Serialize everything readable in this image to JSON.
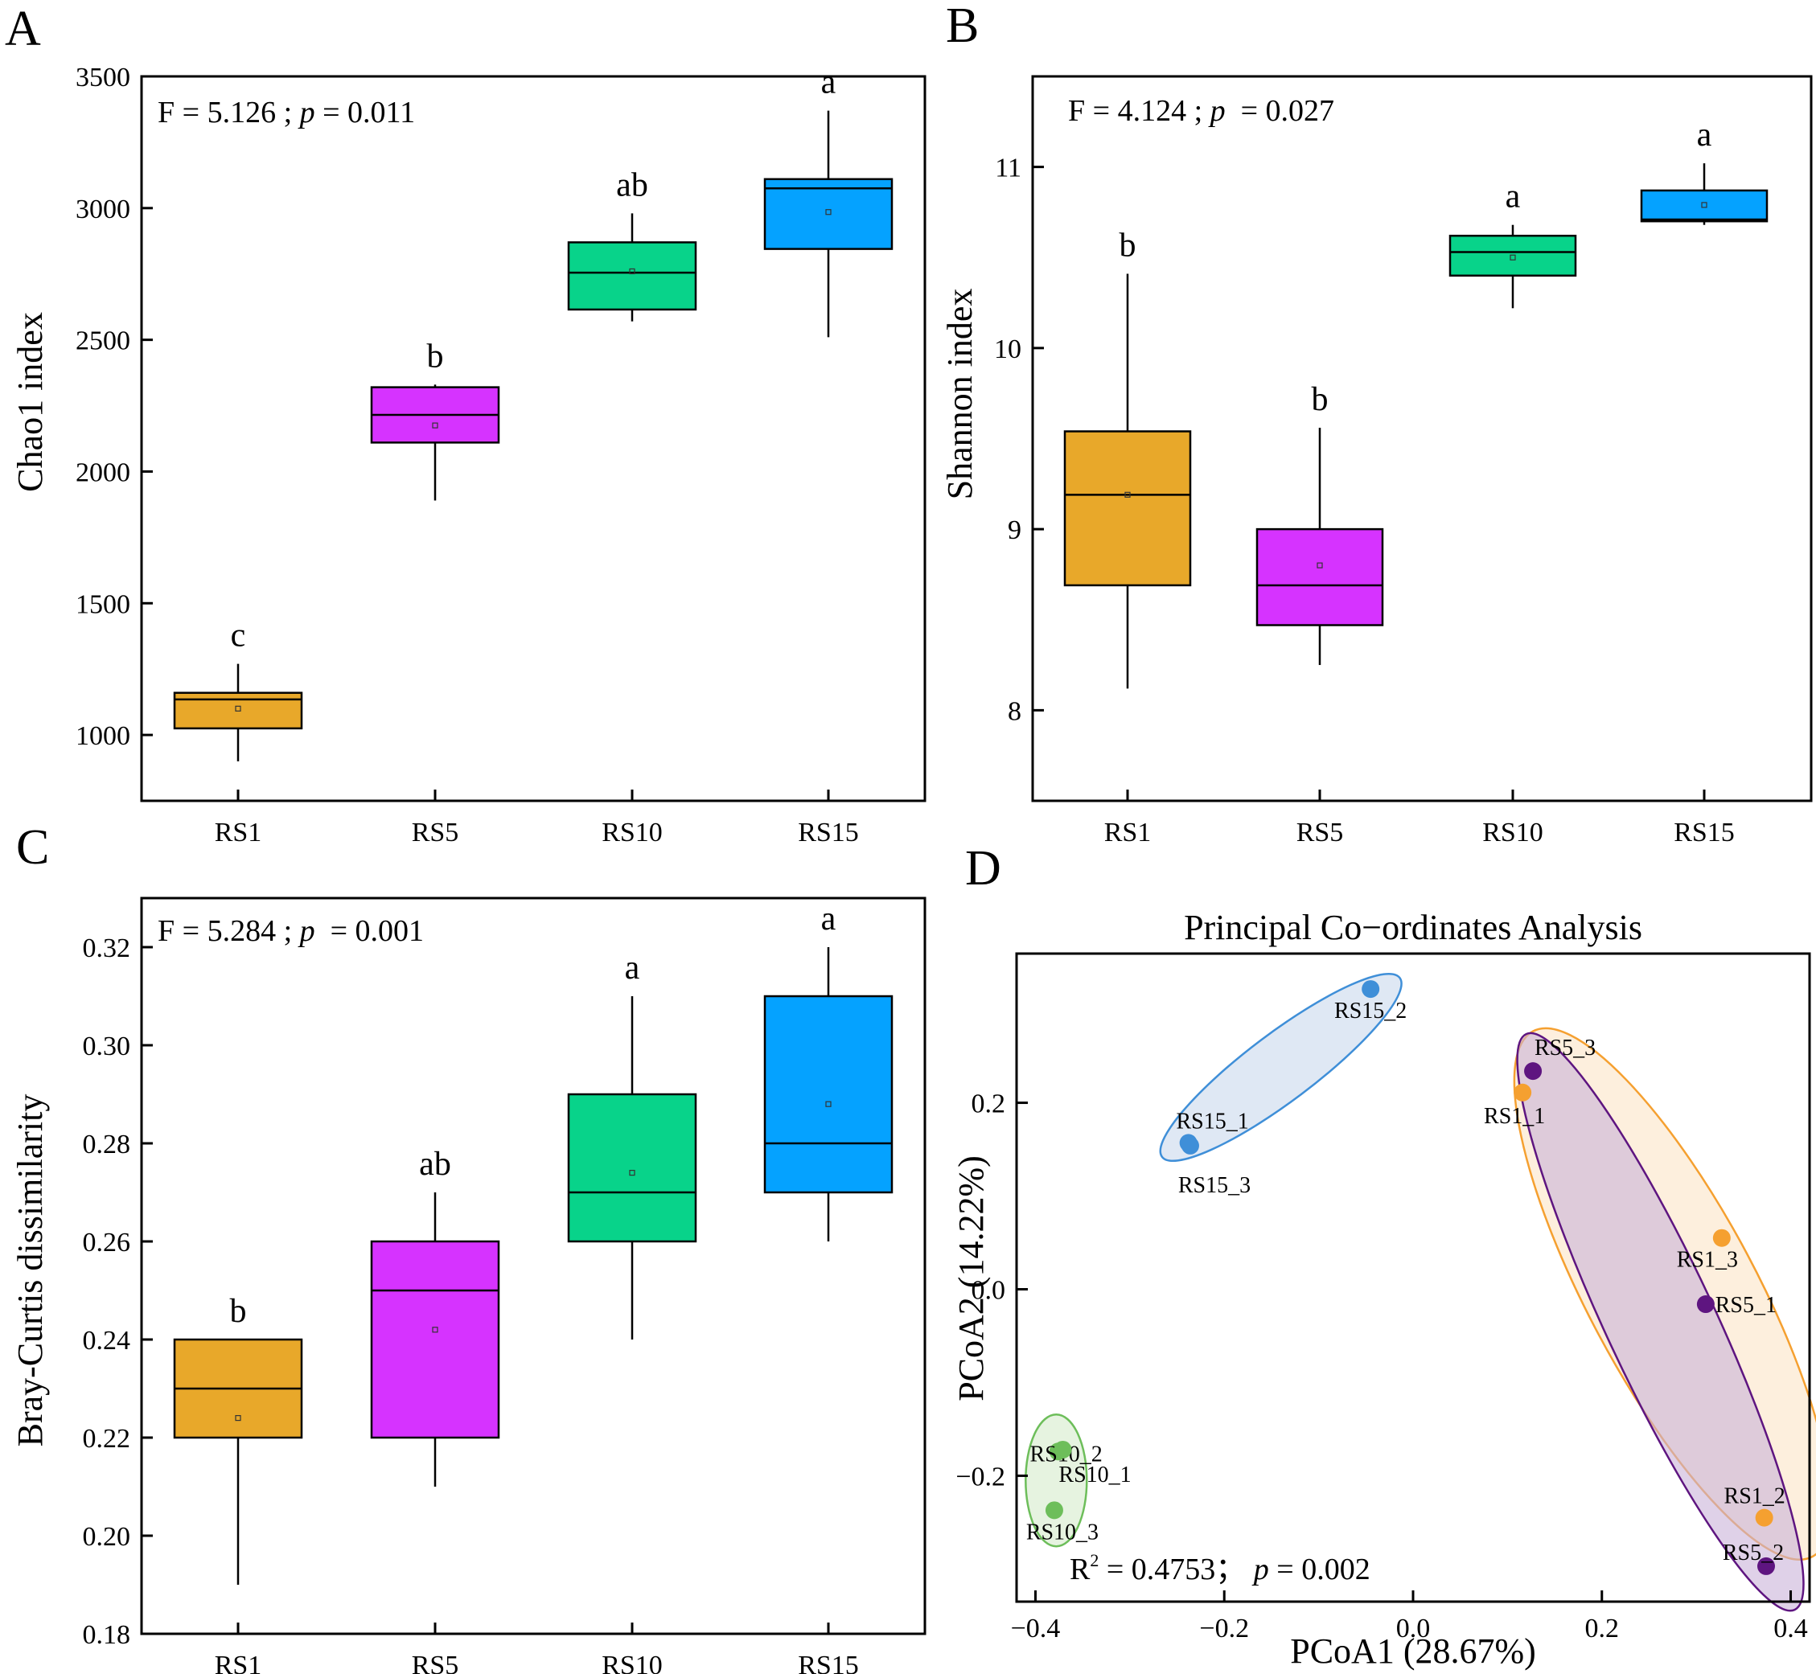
{
  "chart_data": [
    {
      "panel": "A",
      "type": "box",
      "ylabel": "Chao1 index",
      "ylim": [
        750,
        3500
      ],
      "yticks": [
        1000,
        1500,
        2000,
        2500,
        3000,
        3500
      ],
      "categories": [
        "RS1",
        "RS5",
        "RS10",
        "RS15"
      ],
      "stat_prefix": "F = 5.126 ; ",
      "stat_p_symbol": "p",
      "stat_suffix": " = 0.011",
      "boxes": [
        {
          "category": "RS1",
          "color": "#E8A82A",
          "whisker_low": 900,
          "q1": 1025,
          "median": 1135,
          "q3": 1160,
          "whisker_high": 1270,
          "mean": 1100,
          "letter": "c"
        },
        {
          "category": "RS5",
          "color": "#D633FF",
          "whisker_low": 1890,
          "q1": 2110,
          "median": 2215,
          "q3": 2320,
          "whisker_high": 2330,
          "mean": 2175,
          "letter": "b"
        },
        {
          "category": "RS10",
          "color": "#08D38A",
          "whisker_low": 2570,
          "q1": 2615,
          "median": 2755,
          "q3": 2870,
          "whisker_high": 2980,
          "mean": 2760,
          "letter": "ab"
        },
        {
          "category": "RS15",
          "color": "#05A2FF",
          "whisker_low": 2510,
          "q1": 2845,
          "median": 3075,
          "q3": 3110,
          "whisker_high": 3370,
          "mean": 2985,
          "letter": "a"
        }
      ]
    },
    {
      "panel": "B",
      "type": "box",
      "ylabel": "Shannon index",
      "ylim": [
        7.5,
        11.5
      ],
      "yticks": [
        8,
        9,
        10,
        11
      ],
      "categories": [
        "RS1",
        "RS5",
        "RS10",
        "RS15"
      ],
      "stat_prefix": "F = 4.124 ; ",
      "stat_p_symbol": "p",
      "stat_suffix": "  = 0.027",
      "boxes": [
        {
          "category": "RS1",
          "color": "#E8A82A",
          "whisker_low": 8.12,
          "q1": 8.69,
          "median": 9.19,
          "q3": 9.54,
          "whisker_high": 10.41,
          "mean": 9.19,
          "letter": "b"
        },
        {
          "category": "RS5",
          "color": "#D633FF",
          "whisker_low": 8.25,
          "q1": 8.47,
          "median": 8.69,
          "q3": 9.0,
          "whisker_high": 9.56,
          "mean": 8.8,
          "letter": "b"
        },
        {
          "category": "RS10",
          "color": "#08D38A",
          "whisker_low": 10.22,
          "q1": 10.4,
          "median": 10.53,
          "q3": 10.62,
          "whisker_high": 10.68,
          "mean": 10.5,
          "letter": "a"
        },
        {
          "category": "RS15",
          "color": "#05A2FF",
          "whisker_low": 10.68,
          "q1": 10.7,
          "median": 10.71,
          "q3": 10.87,
          "whisker_high": 11.02,
          "mean": 10.79,
          "letter": "a"
        }
      ]
    },
    {
      "panel": "C",
      "type": "box",
      "ylabel": "Bray-Curtis dissimilarity",
      "ylim": [
        0.18,
        0.33
      ],
      "yticks": [
        "0.18",
        "0.20",
        "0.22",
        "0.24",
        "0.26",
        "0.28",
        "0.30",
        "0.32"
      ],
      "categories": [
        "RS1",
        "RS5",
        "RS10",
        "RS15"
      ],
      "stat_prefix": "F = 5.284 ; ",
      "stat_p_symbol": "p",
      "stat_suffix": "  = 0.001",
      "boxes": [
        {
          "category": "RS1",
          "color": "#E8A82A",
          "whisker_low": 0.19,
          "q1": 0.22,
          "median": 0.23,
          "q3": 0.24,
          "whisker_high": 0.24,
          "mean": 0.224,
          "letter": "b"
        },
        {
          "category": "RS5",
          "color": "#D633FF",
          "whisker_low": 0.21,
          "q1": 0.22,
          "median": 0.25,
          "q3": 0.26,
          "whisker_high": 0.27,
          "mean": 0.242,
          "letter": "ab"
        },
        {
          "category": "RS10",
          "color": "#08D38A",
          "whisker_low": 0.24,
          "q1": 0.26,
          "median": 0.27,
          "q3": 0.29,
          "whisker_high": 0.31,
          "mean": 0.274,
          "letter": "a"
        },
        {
          "category": "RS15",
          "color": "#05A2FF",
          "whisker_low": 0.26,
          "q1": 0.27,
          "median": 0.28,
          "q3": 0.31,
          "whisker_high": 0.32,
          "mean": 0.288,
          "letter": "a"
        }
      ]
    },
    {
      "panel": "D",
      "type": "scatter",
      "title": "Principal Co−ordinates Analysis",
      "xlabel": "PCoA1 (28.67%)",
      "ylabel": "PCoA2 (14.22%)",
      "xlim": [
        -0.42,
        0.42
      ],
      "ylim": [
        -0.335,
        0.36
      ],
      "xticks": [
        "−0.4",
        "−0.2",
        "0.0",
        "0.2",
        "0.4"
      ],
      "xtick_values": [
        -0.4,
        -0.2,
        0.0,
        0.2,
        0.4
      ],
      "yticks": [
        "−0.2",
        "0.0",
        "0.2"
      ],
      "ytick_values": [
        -0.2,
        0.0,
        0.2
      ],
      "stat_r": "R",
      "stat_sup": "2",
      "stat_r_value": " = 0.4753； ",
      "stat_p_symbol": "p",
      "stat_suffix": " = 0.002",
      "groups": [
        {
          "name": "RS15",
          "color": "#3F8FD8",
          "fill": "#C9D9EC",
          "points": [
            {
              "label": "RS15_2",
              "x": -0.045,
              "y": 0.322
            },
            {
              "label": "RS15_1",
              "x": -0.238,
              "y": 0.157
            },
            {
              "label": "RS15_3",
              "x": -0.236,
              "y": 0.154
            }
          ]
        },
        {
          "name": "RS1",
          "color": "#F5A030",
          "fill": "#FBE4C6",
          "points": [
            {
              "label": "RS1_1",
              "x": 0.116,
              "y": 0.211
            },
            {
              "label": "RS1_3",
              "x": 0.327,
              "y": 0.055
            },
            {
              "label": "RS1_2",
              "x": 0.372,
              "y": -0.245
            }
          ]
        },
        {
          "name": "RS5",
          "color": "#5E1580",
          "fill": "#C9B3D8",
          "points": [
            {
              "label": "RS5_3",
              "x": 0.127,
              "y": 0.234
            },
            {
              "label": "RS5_1",
              "x": 0.31,
              "y": -0.016
            },
            {
              "label": "RS5_2",
              "x": 0.374,
              "y": -0.297
            }
          ]
        },
        {
          "name": "RS10",
          "color": "#6DBE5A",
          "fill": "#D5EBCB",
          "points": [
            {
              "label": "RS10_2",
              "x": -0.376,
              "y": -0.174
            },
            {
              "label": "RS10_1",
              "x": -0.371,
              "y": -0.172
            },
            {
              "label": "RS10_3",
              "x": -0.38,
              "y": -0.237
            }
          ]
        }
      ]
    }
  ]
}
